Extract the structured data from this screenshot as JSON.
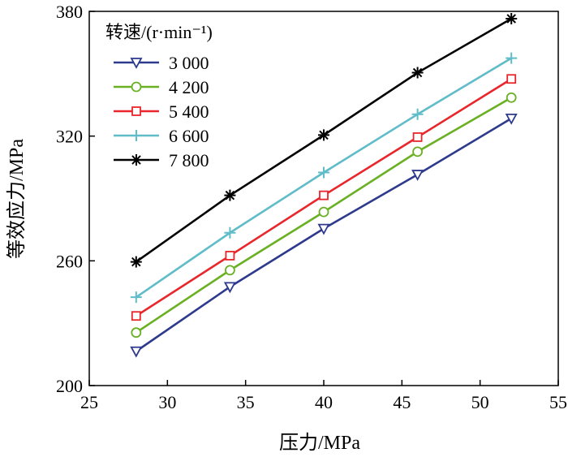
{
  "chart_data": {
    "type": "line",
    "title": "",
    "xlabel": "压力/MPa",
    "ylabel": "等效应力/MPa",
    "xlim": [
      25,
      55
    ],
    "ylim": [
      200,
      380
    ],
    "xticks": [
      25,
      30,
      35,
      40,
      45,
      50,
      55
    ],
    "yticks": [
      200,
      260,
      320,
      380
    ],
    "xtick_labels": [
      "25",
      "30",
      "35",
      "40",
      "45",
      "50",
      "55"
    ],
    "ytick_labels": [
      "200",
      "260",
      "320",
      "380"
    ],
    "legend_title": "转速/(r·min⁻¹)",
    "legend_position": "top-left",
    "grid": false,
    "x": [
      28,
      34,
      40,
      46,
      52
    ],
    "series": [
      {
        "name": "3 000",
        "values": [
          216.5,
          247.5,
          275.5,
          301.5,
          328.5
        ],
        "color": "#2e3a8c",
        "marker": "triangle-down"
      },
      {
        "name": "4 200",
        "values": [
          225.5,
          255.5,
          283.5,
          312.5,
          338.5
        ],
        "color": "#6ab023",
        "marker": "circle"
      },
      {
        "name": "5 400",
        "values": [
          233.5,
          262.5,
          291.5,
          319.5,
          347.5
        ],
        "color": "#e8262b",
        "marker": "square"
      },
      {
        "name": "6 600",
        "values": [
          242.5,
          273.5,
          302.5,
          330.5,
          357.5
        ],
        "color": "#5fbcc8",
        "marker": "plus"
      },
      {
        "name": "7 800",
        "values": [
          259.5,
          291.5,
          320.5,
          350.5,
          376.5
        ],
        "color": "#000000",
        "marker": "star"
      }
    ]
  }
}
